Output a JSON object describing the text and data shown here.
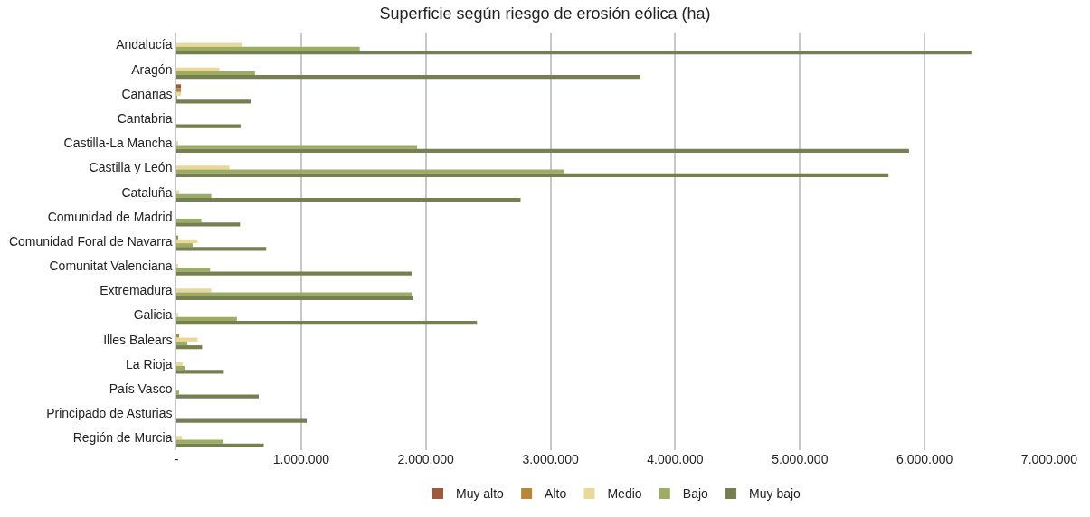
{
  "chart_data": {
    "type": "bar",
    "orientation": "horizontal",
    "title": "Superficie según riesgo de erosión eólica (ha)",
    "categories": [
      "Andalucía",
      "Aragón",
      "Canarias",
      "Cantabria",
      "Castilla-La Mancha",
      "Castilla y León",
      "Cataluña",
      "Comunidad de Madrid",
      "Comunidad Foral de Navarra",
      "Comunitat Valenciana",
      "Extremadura",
      "Galicia",
      "Illes Balears",
      "La Rioja",
      "País Vasco",
      "Principado de Asturias",
      "Región de Murcia"
    ],
    "series": [
      {
        "name": "Muy alto",
        "color": "#9b5a3c",
        "values": [
          null,
          null,
          37000,
          null,
          null,
          null,
          null,
          null,
          null,
          null,
          null,
          null,
          null,
          null,
          null,
          null,
          null
        ]
      },
      {
        "name": "Alto",
        "color": "#b8863b",
        "values": [
          null,
          null,
          37000,
          null,
          null,
          null,
          null,
          null,
          15000,
          null,
          null,
          null,
          22000,
          null,
          null,
          null,
          null
        ]
      },
      {
        "name": "Medio",
        "color": "#ecd797",
        "values": [
          530000,
          345000,
          37000,
          null,
          10000,
          425000,
          22000,
          null,
          170000,
          15000,
          280000,
          15000,
          170000,
          50000,
          null,
          null,
          44000
        ]
      },
      {
        "name": "Bajo",
        "color": "#9aad62",
        "values": [
          1470000,
          630000,
          7000,
          null,
          1930000,
          3110000,
          280000,
          200000,
          130000,
          270000,
          1890000,
          485000,
          88000,
          66000,
          22000,
          null,
          375000
        ]
      },
      {
        "name": "Muy bajo",
        "color": "#767f4f",
        "values": [
          6375000,
          3720000,
          595000,
          515000,
          5875000,
          5710000,
          2760000,
          510000,
          720000,
          1890000,
          1900000,
          2410000,
          206000,
          380000,
          660000,
          1045000,
          700000
        ]
      }
    ],
    "xlim": [
      0,
      7000000
    ],
    "xticks": [
      {
        "value": 0,
        "label": "-"
      },
      {
        "value": 1000000,
        "label": "1.000.000"
      },
      {
        "value": 2000000,
        "label": "2.000.000"
      },
      {
        "value": 3000000,
        "label": "3.000.000"
      },
      {
        "value": 4000000,
        "label": "4.000.000"
      },
      {
        "value": 5000000,
        "label": "5.000.000"
      },
      {
        "value": 6000000,
        "label": "6.000.000"
      },
      {
        "value": 7000000,
        "label": "7.000.000"
      }
    ],
    "grid": "x",
    "legend": "bottom"
  }
}
